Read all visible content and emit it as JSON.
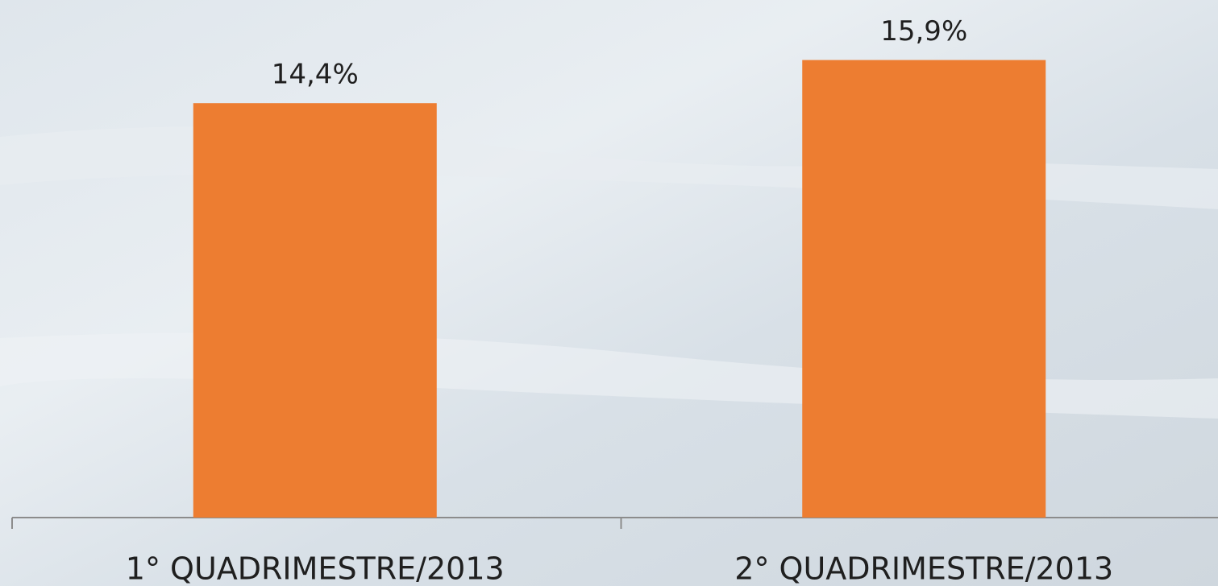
{
  "chart_data": {
    "type": "bar",
    "categories": [
      "1° QUADRIMESTRE/2013",
      "2° QUADRIMESTRE/2013"
    ],
    "values": [
      14.4,
      15.9
    ],
    "value_labels": [
      "14,4%",
      "15,9%"
    ],
    "color": "#ed7d31"
  }
}
